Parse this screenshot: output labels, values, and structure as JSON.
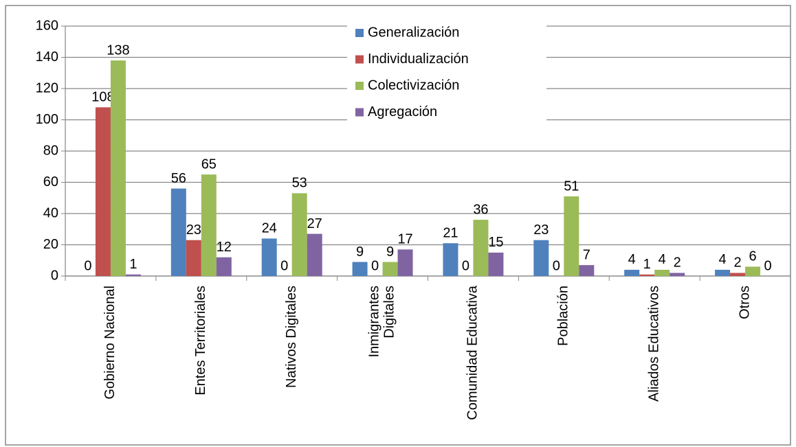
{
  "chart_data": {
    "type": "bar",
    "categories": [
      "Gobierno Nacional",
      "Entes Territoriales",
      "Nativos Digitales",
      "Inmigrantes Digitales",
      "Comunidad Educativa",
      "Población",
      "Aliados Educativos",
      "Otros"
    ],
    "series": [
      {
        "name": "Generalización",
        "color": "#4f81bd",
        "values": [
          0,
          56,
          24,
          9,
          21,
          23,
          4,
          4
        ]
      },
      {
        "name": "Individualización",
        "color": "#c0504d",
        "values": [
          108,
          23,
          0,
          0,
          0,
          0,
          1,
          2
        ]
      },
      {
        "name": "Colectivización",
        "color": "#9bbb59",
        "values": [
          138,
          65,
          53,
          9,
          36,
          51,
          4,
          6
        ]
      },
      {
        "name": "Agregación",
        "color": "#8064a2",
        "values": [
          1,
          12,
          27,
          17,
          15,
          7,
          2,
          0
        ]
      }
    ],
    "ylim": [
      0,
      160
    ],
    "yticks": [
      0,
      20,
      40,
      60,
      80,
      100,
      120,
      140,
      160
    ],
    "grid": true,
    "legend": "top"
  }
}
